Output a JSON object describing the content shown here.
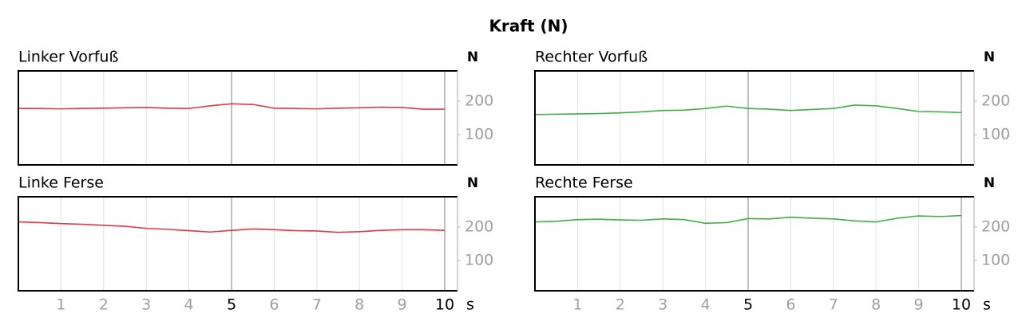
{
  "title": "Kraft (N)",
  "chart_data": [
    {
      "type": "line",
      "title": "Linker Vorfuß",
      "y_label": "N",
      "x_label": "s",
      "x": [
        0,
        0.5,
        1,
        1.5,
        2,
        2.5,
        3,
        3.5,
        4,
        4.5,
        5,
        5.5,
        6,
        6.5,
        7,
        7.5,
        8,
        8.5,
        9,
        9.5,
        10
      ],
      "series": [
        {
          "color": "#e0393e",
          "values": [
            178,
            178,
            177,
            178,
            179,
            180,
            181,
            179,
            178,
            186,
            192,
            190,
            179,
            178,
            177,
            179,
            180,
            182,
            181,
            176,
            176
          ]
        }
      ],
      "xlim": [
        0,
        10.3
      ],
      "ylim": [
        10,
        290
      ],
      "xticks": [
        1,
        2,
        3,
        4,
        5,
        6,
        7,
        8,
        9,
        10
      ],
      "yticks": [
        100,
        200
      ],
      "grid": true
    },
    {
      "type": "line",
      "title": "Rechter Vorfuß",
      "y_label": "N",
      "x_label": "s",
      "x": [
        0,
        0.5,
        1,
        1.5,
        2,
        2.5,
        3,
        3.5,
        4,
        4.5,
        5,
        5.5,
        6,
        6.5,
        7,
        7.5,
        8,
        8.5,
        9,
        9.5,
        10
      ],
      "series": [
        {
          "color": "#3cb043",
          "values": [
            160,
            161,
            162,
            163,
            165,
            168,
            172,
            173,
            178,
            185,
            178,
            176,
            172,
            175,
            178,
            188,
            186,
            178,
            169,
            168,
            166
          ]
        }
      ],
      "xlim": [
        0,
        10.3
      ],
      "ylim": [
        10,
        290
      ],
      "xticks": [
        1,
        2,
        3,
        4,
        5,
        6,
        7,
        8,
        9,
        10
      ],
      "yticks": [
        100,
        200
      ],
      "grid": true
    },
    {
      "type": "line",
      "title": "Linke Ferse",
      "y_label": "N",
      "x_label": "s",
      "x": [
        0,
        0.5,
        1,
        1.5,
        2,
        2.5,
        3,
        3.5,
        4,
        4.5,
        5,
        5.5,
        6,
        6.5,
        7,
        7.5,
        8,
        8.5,
        9,
        9.5,
        10
      ],
      "series": [
        {
          "color": "#e0393e",
          "values": [
            215,
            213,
            210,
            208,
            205,
            202,
            196,
            193,
            189,
            185,
            190,
            194,
            192,
            189,
            188,
            184,
            186,
            190,
            192,
            192,
            190
          ]
        }
      ],
      "xlim": [
        0,
        10.3
      ],
      "ylim": [
        10,
        290
      ],
      "xticks": [
        1,
        2,
        3,
        4,
        5,
        6,
        7,
        8,
        9,
        10
      ],
      "yticks": [
        100,
        200
      ],
      "grid": true
    },
    {
      "type": "line",
      "title": "Rechte Ferse",
      "y_label": "N",
      "x_label": "s",
      "x": [
        0,
        0.5,
        1,
        1.5,
        2,
        2.5,
        3,
        3.5,
        4,
        4.5,
        5,
        5.5,
        6,
        6.5,
        7,
        7.5,
        8,
        8.5,
        9,
        9.5,
        10
      ],
      "series": [
        {
          "color": "#3cb043",
          "values": [
            215,
            217,
            222,
            223,
            221,
            220,
            224,
            222,
            211,
            213,
            225,
            224,
            229,
            226,
            224,
            218,
            215,
            226,
            233,
            231,
            234
          ]
        }
      ],
      "xlim": [
        0,
        10.3
      ],
      "ylim": [
        10,
        290
      ],
      "xticks": [
        1,
        2,
        3,
        4,
        5,
        6,
        7,
        8,
        9,
        10
      ],
      "yticks": [
        100,
        200
      ],
      "grid": true
    }
  ]
}
